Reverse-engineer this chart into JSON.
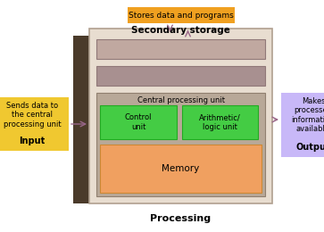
{
  "bg_color": "#ffffff",
  "computer_side_color": "#4a3a2a",
  "computer_side_shadow": "#6a5a4a",
  "computer_front_color": "#e8ddd0",
  "computer_border_color": "#b0a090",
  "bar1_color": "#c0a8a0",
  "bar2_color": "#a89090",
  "cpu_box_color": "#b8a898",
  "cpu_label": "Central processing unit",
  "control_unit_color": "#44cc44",
  "control_unit_border": "#22aa22",
  "control_unit_label": "Control\nunit",
  "alu_color": "#44cc44",
  "alu_border": "#22aa22",
  "alu_label": "Arithmetic/\nlogic unit",
  "memory_color": "#f0a060",
  "memory_border": "#cc8833",
  "memory_label": "Memory",
  "ss_box_color": "#f0a020",
  "ss_text": "Stores data and programs",
  "ss_label": "Secondary storage",
  "input_box_color": "#f0c830",
  "input_text": "Sends data to\nthe central\nprocessing unit",
  "input_label": "Input",
  "output_box_color": "#c8b8f8",
  "output_text": "Makes\nprocessed\ninformation\navailable",
  "output_label": "Output",
  "processing_label": "Processing",
  "arrow_color": "#996688"
}
